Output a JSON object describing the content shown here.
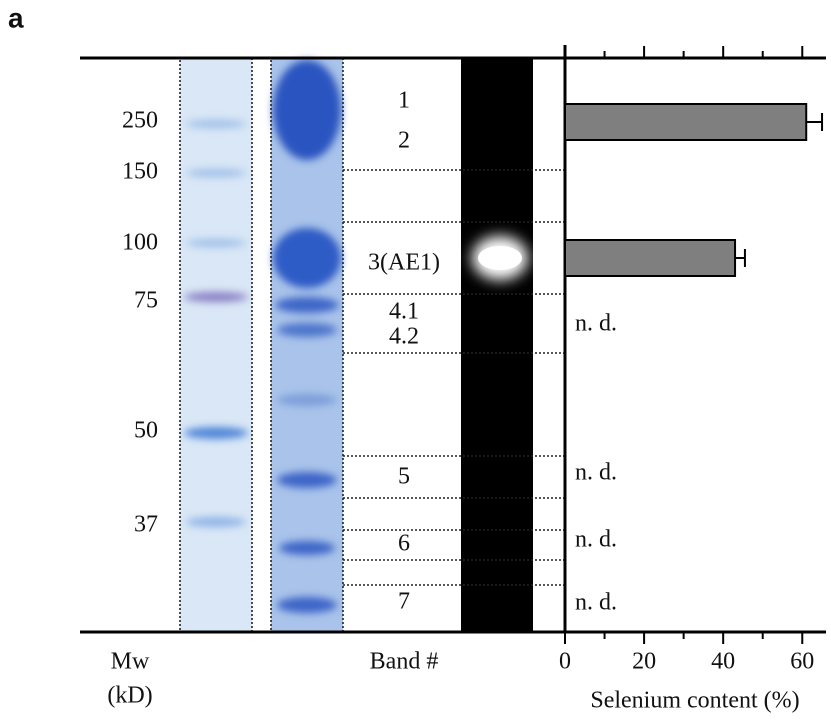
{
  "panel_label": "a",
  "mw_markers": [
    250,
    150,
    100,
    75,
    50,
    37
  ],
  "mw_label": "Mw",
  "mw_unit": "(kD)",
  "band_label": "Band #",
  "bands": [
    [
      "1",
      "2"
    ],
    [
      "3(AE1)"
    ],
    [
      "4.1",
      "4.2"
    ],
    [
      "5"
    ],
    [
      "6"
    ],
    [
      "7"
    ]
  ],
  "chart_data": {
    "type": "bar",
    "orientation": "horizontal",
    "x_label": "Selenium content (%)",
    "values": [
      61,
      43,
      null,
      null,
      null,
      null
    ],
    "errors": [
      4,
      2.5,
      null,
      null,
      null,
      null
    ],
    "value_labels": [
      null,
      null,
      "n. d.",
      "n. d.",
      "n. d.",
      "n. d."
    ],
    "color": "#7f7f7f",
    "xlim": [
      0,
      66
    ],
    "xticks": [
      0,
      20,
      40,
      60
    ],
    "xminor": [
      10,
      30,
      50
    ]
  }
}
